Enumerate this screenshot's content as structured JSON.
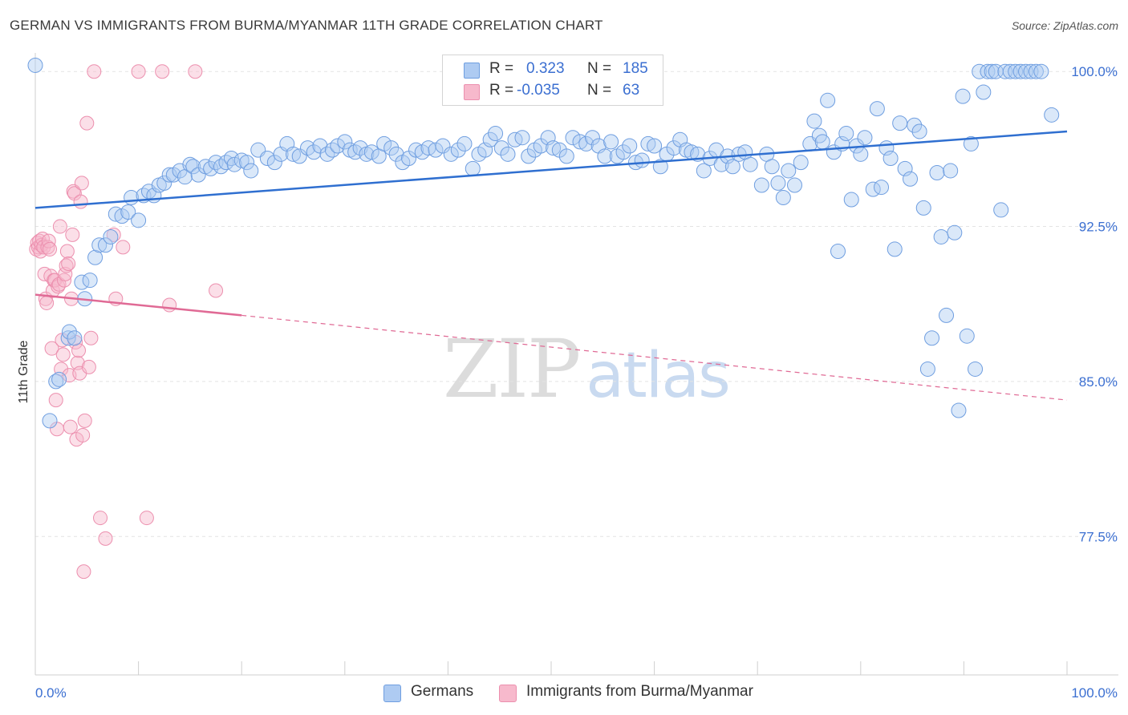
{
  "title": "GERMAN VS IMMIGRANTS FROM BURMA/MYANMAR 11TH GRADE CORRELATION CHART",
  "source": "Source: ZipAtlas.com",
  "watermark": {
    "zip": "ZIP",
    "atlas": "atlas"
  },
  "legend": {
    "rows": [
      {
        "r_label": "R =",
        "r_value": "0.323",
        "n_label": "N =",
        "n_value": "185",
        "color": "#aecbf2"
      },
      {
        "r_label": "R =",
        "r_value": "-0.035",
        "n_label": "N =",
        "n_value": "63",
        "color": "#f7b9cc"
      }
    ]
  },
  "bottom_legend": [
    {
      "label": "Germans",
      "color": "#aecbf2"
    },
    {
      "label": "Immigrants from Burma/Myanmar",
      "color": "#f7b9cc"
    }
  ],
  "colors": {
    "blue_fill": "#aecbf2",
    "blue_stroke": "#6f9ee0",
    "blue_line": "#2f6fd0",
    "pink_fill": "#f7b9cc",
    "pink_stroke": "#ec8fae",
    "pink_line": "#e06a95",
    "tick_label": "#3b6fd1"
  },
  "chart_data": {
    "type": "scatter",
    "title": "GERMAN VS IMMIGRANTS FROM BURMA/MYANMAR 11TH GRADE CORRELATION CHART",
    "xlabel": "",
    "ylabel": "11th Grade",
    "xlim": [
      0,
      100
    ],
    "ylim": [
      70.8,
      100.9
    ],
    "x_tick_labels": [
      "0.0%",
      "100.0%"
    ],
    "y_ticks": [
      {
        "value": 100.0,
        "label": "100.0%"
      },
      {
        "value": 92.5,
        "label": "92.5%"
      },
      {
        "value": 85.0,
        "label": "85.0%"
      },
      {
        "value": 77.5,
        "label": "77.5%"
      }
    ],
    "grid": "horizontal dashed",
    "legend_position": "top-center",
    "series": [
      {
        "name": "Germans",
        "r": 0.323,
        "n": 185,
        "trend": {
          "x": [
            0,
            100
          ],
          "y": [
            93.4,
            97.1
          ],
          "style": "solid"
        },
        "points": [
          [
            0,
            100.3
          ],
          [
            1.4,
            83.1
          ],
          [
            2,
            85.0
          ],
          [
            2.3,
            85.1
          ],
          [
            3.2,
            87.1
          ],
          [
            3.3,
            87.4
          ],
          [
            3.8,
            87.1
          ],
          [
            4.5,
            89.8
          ],
          [
            4.8,
            89.0
          ],
          [
            5.3,
            89.9
          ],
          [
            5.8,
            91.0
          ],
          [
            6.2,
            91.6
          ],
          [
            6.8,
            91.6
          ],
          [
            7.3,
            92.0
          ],
          [
            7.8,
            93.1
          ],
          [
            8.4,
            93.0
          ],
          [
            9,
            93.2
          ],
          [
            9.3,
            93.9
          ],
          [
            10,
            92.8
          ],
          [
            10.5,
            94.0
          ],
          [
            11,
            94.2
          ],
          [
            11.5,
            94.0
          ],
          [
            12,
            94.5
          ],
          [
            12.5,
            94.6
          ],
          [
            13,
            95.0
          ],
          [
            13.4,
            95.0
          ],
          [
            14,
            95.2
          ],
          [
            14.5,
            94.9
          ],
          [
            15,
            95.5
          ],
          [
            15.3,
            95.4
          ],
          [
            15.8,
            95.0
          ],
          [
            16.5,
            95.4
          ],
          [
            17,
            95.3
          ],
          [
            17.5,
            95.6
          ],
          [
            18,
            95.4
          ],
          [
            18.5,
            95.6
          ],
          [
            19,
            95.8
          ],
          [
            19.3,
            95.5
          ],
          [
            20,
            95.7
          ],
          [
            20.5,
            95.6
          ],
          [
            20.9,
            95.2
          ],
          [
            21.6,
            96.2
          ],
          [
            22.5,
            95.8
          ],
          [
            23.2,
            95.6
          ],
          [
            23.8,
            96.0
          ],
          [
            24.4,
            96.5
          ],
          [
            25,
            96.0
          ],
          [
            25.6,
            95.9
          ],
          [
            26.4,
            96.3
          ],
          [
            27,
            96.1
          ],
          [
            27.6,
            96.4
          ],
          [
            28.3,
            96.0
          ],
          [
            28.8,
            96.2
          ],
          [
            29.3,
            96.4
          ],
          [
            30,
            96.6
          ],
          [
            30.5,
            96.2
          ],
          [
            31,
            96.1
          ],
          [
            31.5,
            96.3
          ],
          [
            32.1,
            96.0
          ],
          [
            32.6,
            96.1
          ],
          [
            33.3,
            95.9
          ],
          [
            33.8,
            96.5
          ],
          [
            34.5,
            96.3
          ],
          [
            35,
            96.0
          ],
          [
            35.6,
            95.6
          ],
          [
            36.2,
            95.8
          ],
          [
            36.9,
            96.2
          ],
          [
            37.5,
            96.1
          ],
          [
            38.1,
            96.3
          ],
          [
            38.8,
            96.2
          ],
          [
            39.5,
            96.4
          ],
          [
            40.3,
            96.0
          ],
          [
            41,
            96.2
          ],
          [
            41.6,
            96.5
          ],
          [
            42.4,
            95.3
          ],
          [
            43,
            96.0
          ],
          [
            43.6,
            96.2
          ],
          [
            44.1,
            96.7
          ],
          [
            44.6,
            97.0
          ],
          [
            45.2,
            96.3
          ],
          [
            45.8,
            96.0
          ],
          [
            46.5,
            96.7
          ],
          [
            47.2,
            96.8
          ],
          [
            47.8,
            95.9
          ],
          [
            48.4,
            96.2
          ],
          [
            49,
            96.4
          ],
          [
            49.7,
            96.8
          ],
          [
            50.2,
            96.3
          ],
          [
            50.8,
            96.2
          ],
          [
            51.5,
            95.9
          ],
          [
            52.1,
            96.8
          ],
          [
            52.8,
            96.6
          ],
          [
            53.4,
            96.5
          ],
          [
            54,
            96.8
          ],
          [
            54.6,
            96.4
          ],
          [
            55.2,
            95.9
          ],
          [
            55.8,
            96.6
          ],
          [
            56.4,
            95.9
          ],
          [
            57,
            96.1
          ],
          [
            57.6,
            96.4
          ],
          [
            58.2,
            95.6
          ],
          [
            58.8,
            95.7
          ],
          [
            59.4,
            96.5
          ],
          [
            60,
            96.4
          ],
          [
            60.6,
            95.4
          ],
          [
            61.2,
            96.0
          ],
          [
            61.9,
            96.3
          ],
          [
            62.5,
            96.7
          ],
          [
            63.1,
            96.2
          ],
          [
            63.6,
            96.1
          ],
          [
            64.2,
            96.0
          ],
          [
            64.8,
            95.2
          ],
          [
            65.4,
            95.8
          ],
          [
            66,
            96.2
          ],
          [
            66.5,
            95.5
          ],
          [
            67.1,
            95.9
          ],
          [
            67.6,
            95.4
          ],
          [
            68.2,
            96.0
          ],
          [
            68.8,
            96.1
          ],
          [
            69.3,
            95.5
          ],
          [
            70.4,
            94.5
          ],
          [
            70.9,
            96.0
          ],
          [
            71.4,
            95.4
          ],
          [
            72,
            94.6
          ],
          [
            72.5,
            93.9
          ],
          [
            73,
            95.2
          ],
          [
            73.6,
            94.5
          ],
          [
            74.2,
            95.6
          ],
          [
            75.1,
            96.5
          ],
          [
            75.5,
            97.6
          ],
          [
            76,
            96.9
          ],
          [
            76.3,
            96.6
          ],
          [
            76.8,
            98.6
          ],
          [
            77.4,
            96.1
          ],
          [
            77.8,
            91.3
          ],
          [
            78.2,
            96.5
          ],
          [
            78.6,
            97.0
          ],
          [
            79.1,
            93.8
          ],
          [
            79.6,
            96.4
          ],
          [
            80,
            96.0
          ],
          [
            80.4,
            96.8
          ],
          [
            81.2,
            94.3
          ],
          [
            81.6,
            98.2
          ],
          [
            82,
            94.4
          ],
          [
            82.5,
            96.3
          ],
          [
            82.9,
            95.8
          ],
          [
            83.3,
            91.4
          ],
          [
            83.8,
            97.5
          ],
          [
            84.3,
            95.3
          ],
          [
            84.8,
            94.8
          ],
          [
            85.2,
            97.4
          ],
          [
            85.7,
            97.1
          ],
          [
            86.1,
            93.4
          ],
          [
            86.5,
            85.6
          ],
          [
            86.9,
            87.1
          ],
          [
            87.4,
            95.1
          ],
          [
            87.8,
            92.0
          ],
          [
            88.3,
            88.2
          ],
          [
            88.7,
            95.2
          ],
          [
            89.1,
            92.2
          ],
          [
            89.5,
            83.6
          ],
          [
            89.9,
            98.8
          ],
          [
            90.3,
            87.2
          ],
          [
            90.7,
            96.5
          ],
          [
            91.1,
            85.6
          ],
          [
            91.5,
            100.0
          ],
          [
            91.9,
            99.0
          ],
          [
            92.3,
            100.0
          ],
          [
            92.7,
            100.0
          ],
          [
            93.1,
            100.0
          ],
          [
            93.6,
            93.3
          ],
          [
            94,
            100.0
          ],
          [
            94.5,
            100.0
          ],
          [
            95,
            100.0
          ],
          [
            95.5,
            100.0
          ],
          [
            96,
            100.0
          ],
          [
            96.5,
            100.0
          ],
          [
            97,
            100.0
          ],
          [
            97.5,
            100.0
          ],
          [
            98.5,
            97.9
          ]
        ]
      },
      {
        "name": "Immigrants from Burma/Myanmar",
        "r": -0.035,
        "n": 63,
        "trend": {
          "x": [
            0,
            20
          ],
          "y": [
            89.2,
            88.2
          ],
          "style": "solid",
          "extended_dashed_to": [
            100,
            84.1
          ]
        },
        "points": [
          [
            0.1,
            91.4
          ],
          [
            0.2,
            91.7
          ],
          [
            0.3,
            91.5
          ],
          [
            0.4,
            91.8
          ],
          [
            0.5,
            91.3
          ],
          [
            0.6,
            91.6
          ],
          [
            0.7,
            91.9
          ],
          [
            0.8,
            91.5
          ],
          [
            0.9,
            90.2
          ],
          [
            1,
            89.0
          ],
          [
            1.1,
            88.8
          ],
          [
            1.2,
            91.5
          ],
          [
            1.3,
            91.8
          ],
          [
            1.4,
            91.4
          ],
          [
            1.5,
            90.1
          ],
          [
            1.6,
            86.6
          ],
          [
            1.7,
            89.4
          ],
          [
            1.8,
            89.9
          ],
          [
            1.9,
            89.9
          ],
          [
            2,
            84.1
          ],
          [
            2.1,
            82.7
          ],
          [
            2.2,
            89.6
          ],
          [
            2.3,
            89.7
          ],
          [
            2.4,
            92.5
          ],
          [
            2.5,
            85.6
          ],
          [
            2.6,
            87.0
          ],
          [
            2.7,
            86.3
          ],
          [
            2.8,
            89.9
          ],
          [
            2.9,
            90.2
          ],
          [
            3,
            90.6
          ],
          [
            3.1,
            91.3
          ],
          [
            3.2,
            90.7
          ],
          [
            3.3,
            85.3
          ],
          [
            3.4,
            82.8
          ],
          [
            3.5,
            89.0
          ],
          [
            3.6,
            92.1
          ],
          [
            3.7,
            94.2
          ],
          [
            3.8,
            94.1
          ],
          [
            3.9,
            86.9
          ],
          [
            4,
            82.2
          ],
          [
            4.1,
            85.9
          ],
          [
            4.2,
            86.5
          ],
          [
            4.3,
            85.4
          ],
          [
            4.4,
            93.7
          ],
          [
            4.5,
            94.6
          ],
          [
            4.6,
            82.4
          ],
          [
            4.7,
            75.8
          ],
          [
            4.8,
            83.1
          ],
          [
            5,
            97.5
          ],
          [
            5.2,
            85.7
          ],
          [
            5.4,
            87.1
          ],
          [
            5.7,
            100.0
          ],
          [
            6.3,
            78.4
          ],
          [
            6.8,
            77.4
          ],
          [
            7.6,
            92.1
          ],
          [
            7.8,
            89.0
          ],
          [
            8.5,
            91.5
          ],
          [
            10,
            100.0
          ],
          [
            10.8,
            78.4
          ],
          [
            12.3,
            100.0
          ],
          [
            13,
            88.7
          ],
          [
            15.5,
            100.0
          ],
          [
            17.5,
            89.4
          ]
        ]
      }
    ]
  }
}
